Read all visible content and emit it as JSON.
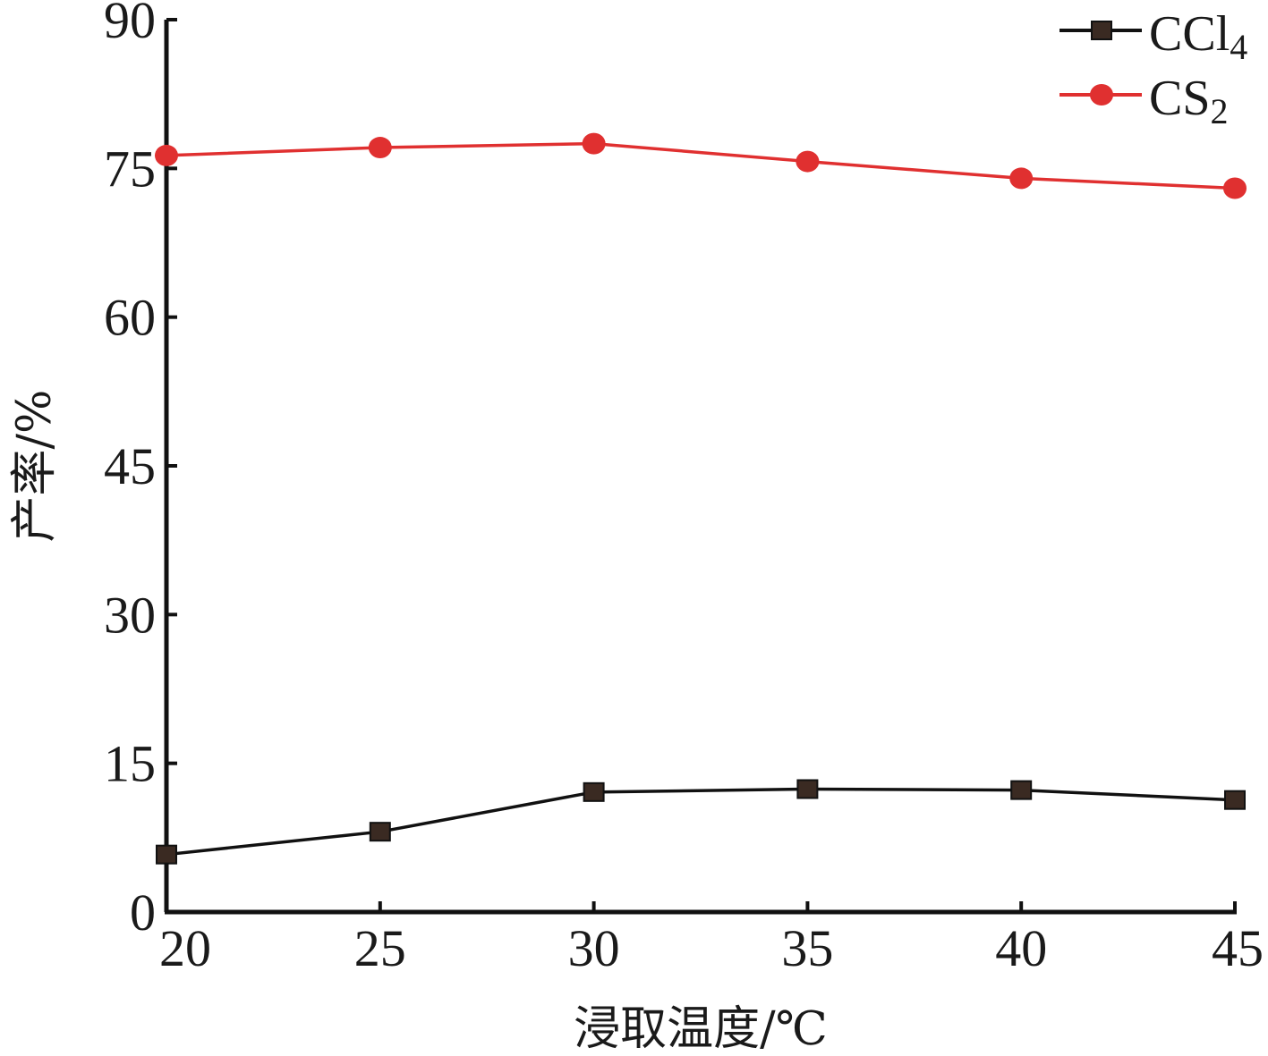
{
  "chart_data": {
    "type": "line",
    "title": "",
    "xlabel": "浸取温度/℃",
    "ylabel": "产率/%",
    "x": [
      20,
      25,
      30,
      35,
      40,
      45
    ],
    "xticks": [
      "20",
      "25",
      "30",
      "35",
      "40",
      "45"
    ],
    "xlim": [
      20,
      45
    ],
    "yticks": [
      "0",
      "15",
      "30",
      "45",
      "60",
      "75",
      "90"
    ],
    "ytick_values": [
      0,
      15,
      30,
      45,
      60,
      75,
      90
    ],
    "ylim": [
      0,
      90
    ],
    "grid": false,
    "legend_position": "top-right",
    "series": [
      {
        "name": "CCl4",
        "name_base": "CCl",
        "name_sub": "4",
        "color": "#111111",
        "marker": "square",
        "marker_color": "#3a2a22",
        "values": [
          5.8,
          8.1,
          12.1,
          12.4,
          12.3,
          11.3
        ]
      },
      {
        "name": "CS2",
        "name_base": "CS",
        "name_sub": "2",
        "color": "#e03030",
        "marker": "circle",
        "marker_color": "#e03030",
        "values": [
          76.3,
          77.1,
          77.5,
          75.7,
          74.0,
          73.0
        ]
      }
    ]
  }
}
